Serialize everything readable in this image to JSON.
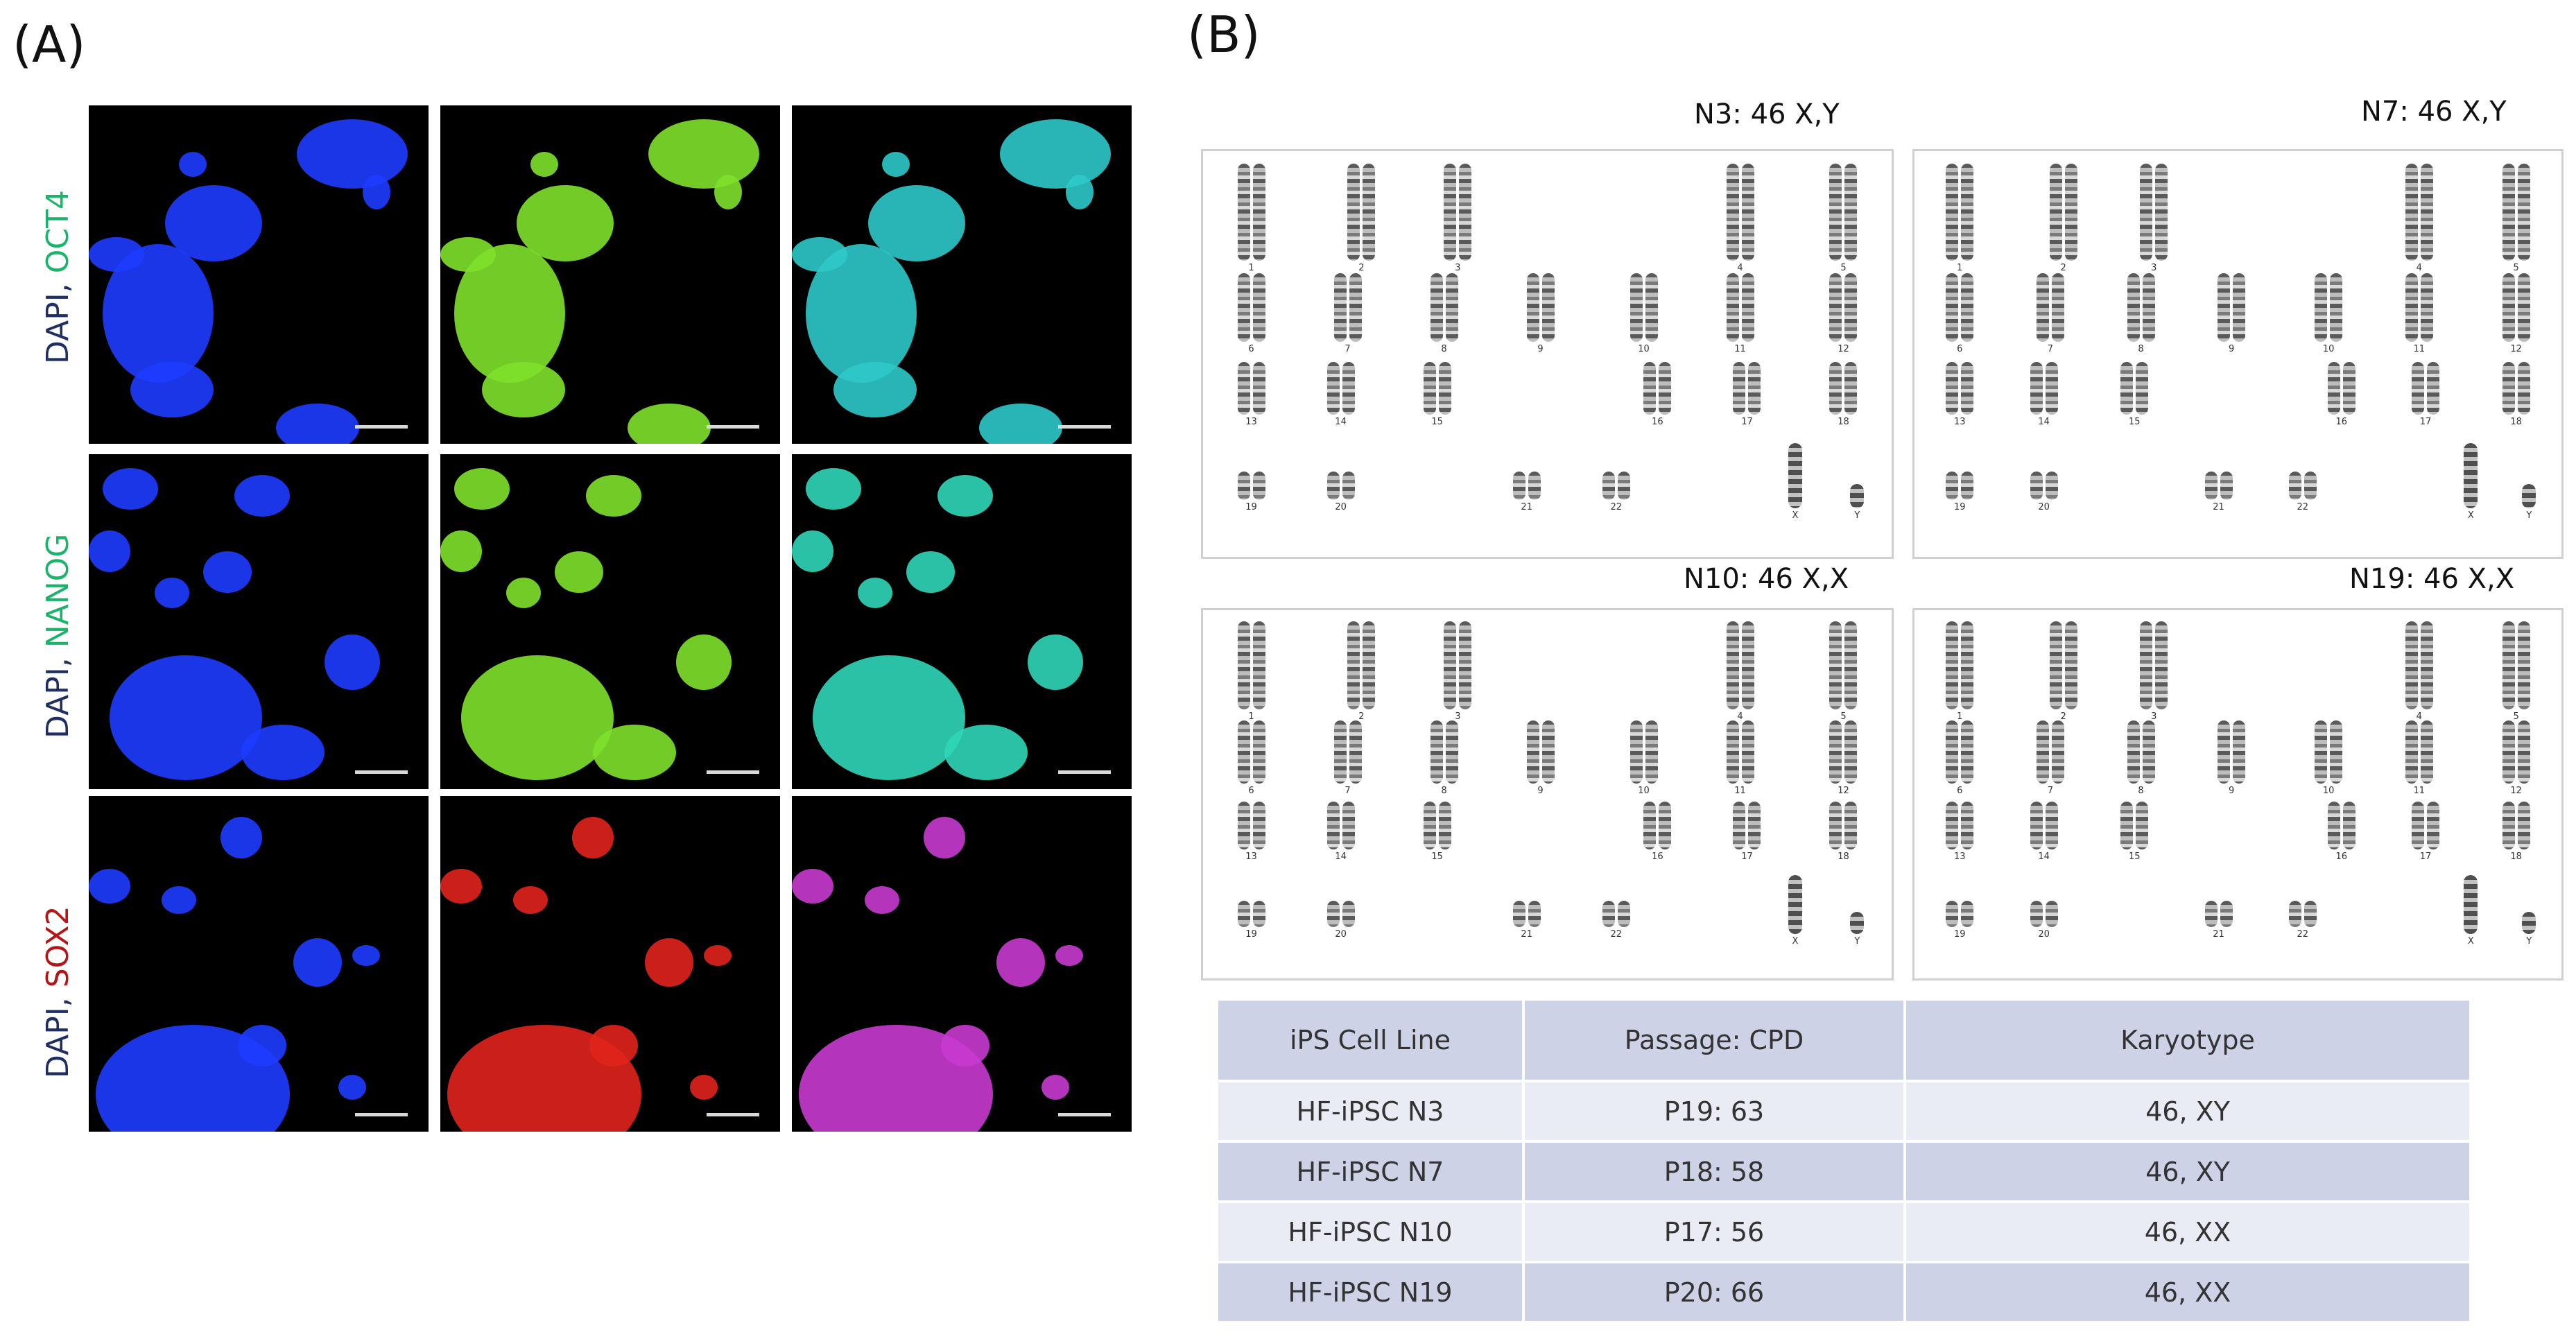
{
  "panels": {
    "a_label": "(A)",
    "b_label": "(B)"
  },
  "panel_a": {
    "rows": [
      {
        "dapi": "DAPI",
        "sep": ",",
        "marker": "OCT4",
        "marker_color": "#1bb46a",
        "merge_color": "#2ec9c9",
        "marker_channel": "#7fe12b"
      },
      {
        "dapi": "DAPI",
        "sep": ",",
        "marker": "NANOG",
        "marker_color": "#1bb46a",
        "merge_color": "#2fd6b8",
        "marker_channel": "#7fe12b"
      },
      {
        "dapi": "DAPI",
        "sep": ",",
        "marker": "SOX2",
        "marker_color": "#b31616",
        "merge_color": "#c83ad0",
        "marker_channel": "#e0241c"
      }
    ],
    "dapi_color": "#1e3cff"
  },
  "karyotypes": [
    {
      "title": "N3: 46 X,Y",
      "sex": [
        "X",
        "Y"
      ]
    },
    {
      "title": "N7: 46 X,Y",
      "sex": [
        "X",
        "Y"
      ]
    },
    {
      "title": "N10: 46 X,X",
      "sex": [
        "X",
        "Y"
      ]
    },
    {
      "title": "N19: 46 X,X",
      "sex": [
        "X",
        "Y"
      ]
    }
  ],
  "chromosome_labels": [
    "1",
    "2",
    "3",
    "4",
    "5",
    "6",
    "7",
    "8",
    "9",
    "10",
    "11",
    "12",
    "13",
    "14",
    "15",
    "16",
    "17",
    "18",
    "19",
    "20",
    "21",
    "22"
  ],
  "table": {
    "headers": [
      "iPS Cell Line",
      "Passage: CPD",
      "Karyotype"
    ],
    "rows": [
      [
        "HF-iPSC N3",
        "P19: 63",
        "46, XY"
      ],
      [
        "HF-iPSC N7",
        "P18: 58",
        "46, XY"
      ],
      [
        "HF-iPSC N10",
        "P17: 56",
        "46, XX"
      ],
      [
        "HF-iPSC N19",
        "P20: 66",
        "46, XX"
      ]
    ]
  }
}
